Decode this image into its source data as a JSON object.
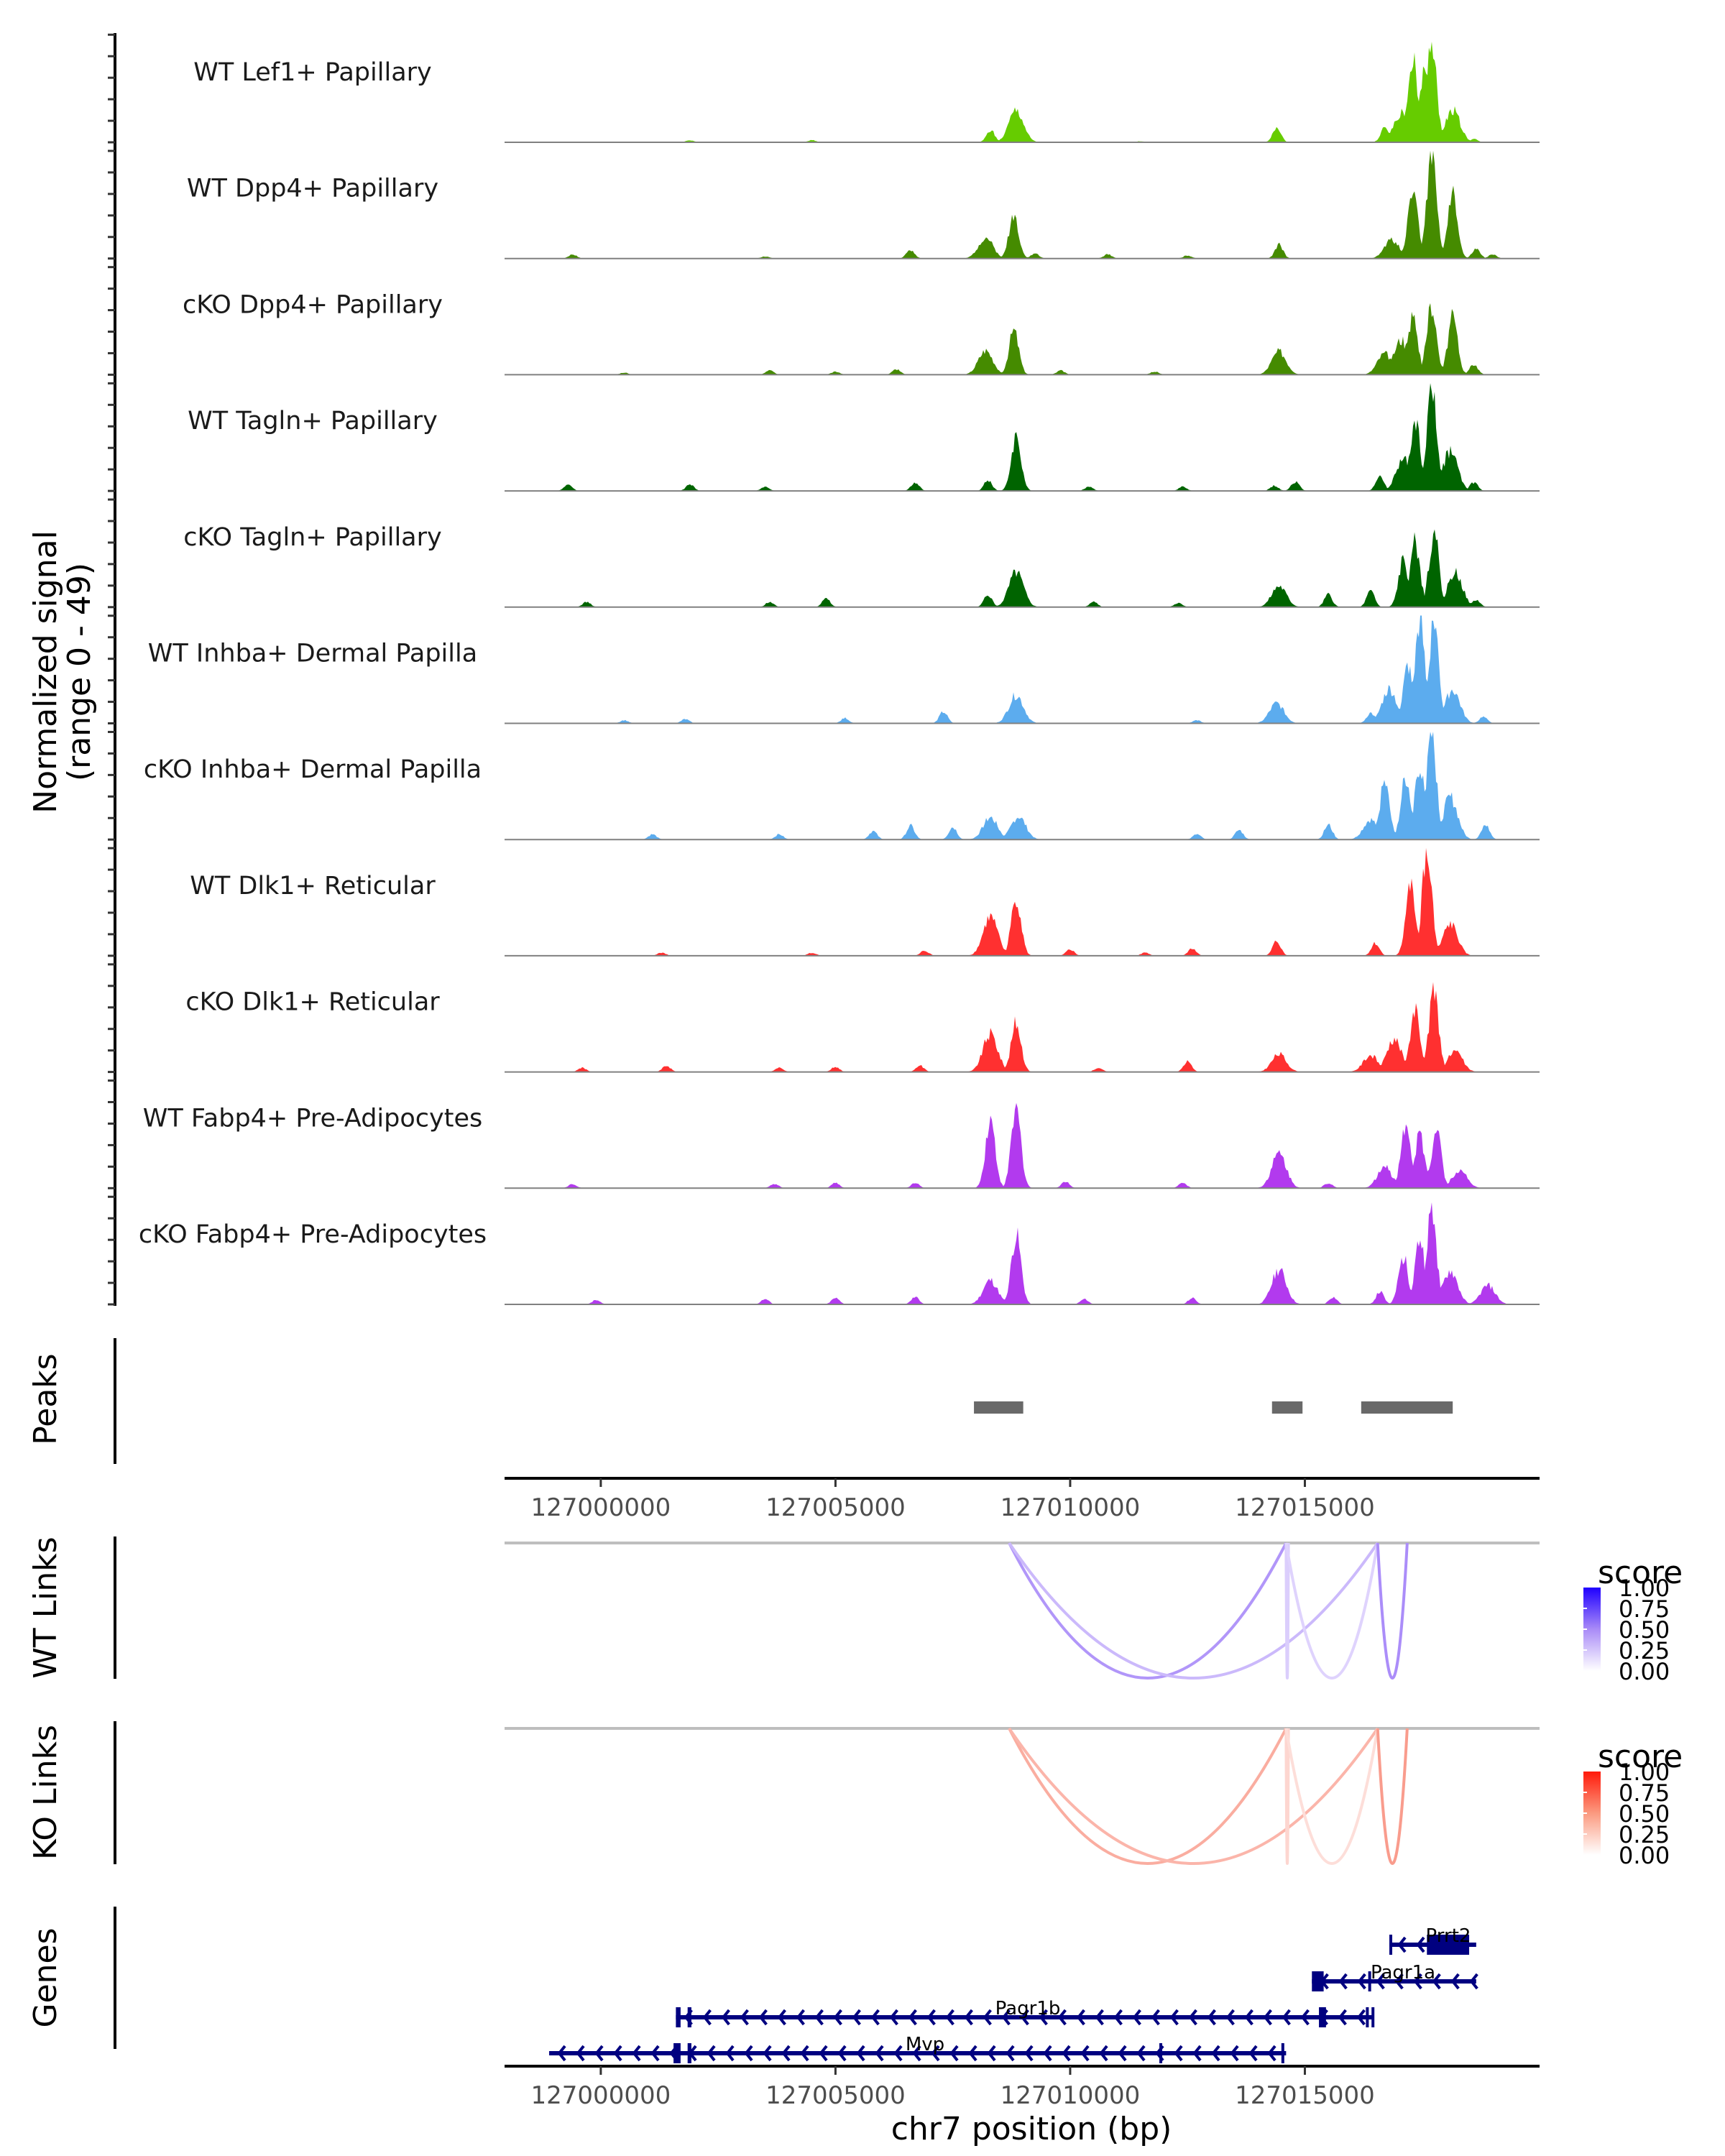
{
  "chart_data": {
    "type": "area",
    "title": "",
    "xlabel": "chr7 position (bp)",
    "ylabel_line1": "Normalized signal",
    "ylabel_line2": "(range 0 - 49)",
    "y_range": [
      0,
      49
    ],
    "xlim": [
      126997950,
      127020000
    ],
    "x_ticks": [
      127000000,
      127005000,
      127010000,
      127015000
    ],
    "x_tick_labels": [
      "127000000",
      "127005000",
      "127010000",
      "127015000"
    ],
    "coverage_tracks": [
      {
        "name": "WT Lef1+ Papillary",
        "color": "#66CC00",
        "peaks": [
          [
            127008300,
            0.12
          ],
          [
            127008850,
            0.3
          ],
          [
            127014400,
            0.15
          ],
          [
            127016700,
            0.14
          ],
          [
            127017050,
            0.28
          ],
          [
            127017300,
            0.77
          ],
          [
            127017550,
            0.72
          ],
          [
            127017700,
            0.99
          ],
          [
            127018150,
            0.31
          ],
          [
            127001900,
            0.02
          ],
          [
            127004500,
            0.02
          ],
          [
            127011500,
            0.01
          ],
          [
            127018600,
            0.03
          ]
        ]
      },
      {
        "name": "WT Dpp4+ Papillary",
        "color": "#458B00",
        "peaks": [
          [
            127008200,
            0.2
          ],
          [
            127008800,
            0.42
          ],
          [
            127009250,
            0.05
          ],
          [
            127006600,
            0.08
          ],
          [
            127014450,
            0.13
          ],
          [
            127016850,
            0.18
          ],
          [
            127017300,
            0.7
          ],
          [
            127017700,
            0.99
          ],
          [
            127018150,
            0.6
          ],
          [
            127018650,
            0.09
          ],
          [
            127019000,
            0.04
          ],
          [
            126999400,
            0.04
          ],
          [
            127003500,
            0.02
          ],
          [
            127010800,
            0.04
          ],
          [
            127012500,
            0.03
          ]
        ]
      },
      {
        "name": "cKO Dpp4+ Papillary",
        "color": "#458B00",
        "peaks": [
          [
            127008200,
            0.23
          ],
          [
            127008800,
            0.42
          ],
          [
            127014450,
            0.22
          ],
          [
            127016700,
            0.2
          ],
          [
            127017050,
            0.33
          ],
          [
            127017300,
            0.56
          ],
          [
            127017700,
            0.66
          ],
          [
            127018150,
            0.54
          ],
          [
            127018600,
            0.1
          ],
          [
            127003600,
            0.04
          ],
          [
            127006300,
            0.05
          ],
          [
            127009800,
            0.04
          ],
          [
            127011800,
            0.03
          ],
          [
            127005000,
            0.03
          ],
          [
            127000500,
            0.02
          ]
        ]
      },
      {
        "name": "WT Tagln+ Papillary",
        "color": "#006400",
        "peaks": [
          [
            127008850,
            0.52
          ],
          [
            127008250,
            0.1
          ],
          [
            127014350,
            0.05
          ],
          [
            127014800,
            0.09
          ],
          [
            127016600,
            0.15
          ],
          [
            127017100,
            0.3
          ],
          [
            127017350,
            0.67
          ],
          [
            127017700,
            0.98
          ],
          [
            127018100,
            0.38
          ],
          [
            127018600,
            0.08
          ],
          [
            126999300,
            0.06
          ],
          [
            127001900,
            0.06
          ],
          [
            127003500,
            0.04
          ],
          [
            127006700,
            0.08
          ],
          [
            127010400,
            0.04
          ],
          [
            127012400,
            0.04
          ]
        ]
      },
      {
        "name": "cKO Tagln+ Papillary",
        "color": "#006400",
        "peaks": [
          [
            127008850,
            0.33
          ],
          [
            127008250,
            0.12
          ],
          [
            127014450,
            0.2
          ],
          [
            127015500,
            0.12
          ],
          [
            127016400,
            0.15
          ],
          [
            127017100,
            0.45
          ],
          [
            127017350,
            0.62
          ],
          [
            127017750,
            0.72
          ],
          [
            127018200,
            0.33
          ],
          [
            127018650,
            0.07
          ],
          [
            126999700,
            0.05
          ],
          [
            127003600,
            0.05
          ],
          [
            127004800,
            0.08
          ],
          [
            127010500,
            0.05
          ],
          [
            127012300,
            0.04
          ]
        ]
      },
      {
        "name": "WT Inhba+ Dermal Papilla",
        "color": "#5CACEE",
        "peaks": [
          [
            127007300,
            0.11
          ],
          [
            127008850,
            0.27
          ],
          [
            127014400,
            0.19
          ],
          [
            127016400,
            0.1
          ],
          [
            127016800,
            0.33
          ],
          [
            127017200,
            0.55
          ],
          [
            127017450,
            0.98
          ],
          [
            127017750,
            0.99
          ],
          [
            127018150,
            0.32
          ],
          [
            127018800,
            0.06
          ],
          [
            127000500,
            0.03
          ],
          [
            127001800,
            0.04
          ],
          [
            127005200,
            0.05
          ],
          [
            127012700,
            0.03
          ]
        ]
      },
      {
        "name": "cKO Inhba+ Dermal Papilla",
        "color": "#5CACEE",
        "peaks": [
          [
            127008300,
            0.21
          ],
          [
            127008900,
            0.22
          ],
          [
            127016400,
            0.19
          ],
          [
            127016700,
            0.54
          ],
          [
            127017150,
            0.6
          ],
          [
            127017450,
            0.71
          ],
          [
            127017700,
            0.99
          ],
          [
            127018100,
            0.4
          ],
          [
            127018850,
            0.14
          ],
          [
            127001100,
            0.05
          ],
          [
            127003800,
            0.05
          ],
          [
            127005800,
            0.08
          ],
          [
            127006600,
            0.13
          ],
          [
            127007500,
            0.12
          ],
          [
            127012700,
            0.05
          ],
          [
            127013600,
            0.09
          ],
          [
            127015500,
            0.14
          ]
        ]
      },
      {
        "name": "WT Dlk1+ Reticular",
        "color": "#FF3030",
        "peaks": [
          [
            127008300,
            0.37
          ],
          [
            127008850,
            0.55
          ],
          [
            127010000,
            0.06
          ],
          [
            127014400,
            0.14
          ],
          [
            127016500,
            0.12
          ],
          [
            127017250,
            0.66
          ],
          [
            127017600,
            0.99
          ],
          [
            127018100,
            0.3
          ],
          [
            127001300,
            0.03
          ],
          [
            127004500,
            0.03
          ],
          [
            127006900,
            0.05
          ],
          [
            127011600,
            0.03
          ],
          [
            127012600,
            0.07
          ]
        ]
      },
      {
        "name": "cKO Dlk1+ Reticular",
        "color": "#FF3030",
        "peaks": [
          [
            127008300,
            0.36
          ],
          [
            127008850,
            0.47
          ],
          [
            127014450,
            0.17
          ],
          [
            127016400,
            0.16
          ],
          [
            127016900,
            0.32
          ],
          [
            127017350,
            0.62
          ],
          [
            127017750,
            0.76
          ],
          [
            127018200,
            0.2
          ],
          [
            126999600,
            0.04
          ],
          [
            127001400,
            0.06
          ],
          [
            127003800,
            0.04
          ],
          [
            127005000,
            0.05
          ],
          [
            127006800,
            0.06
          ],
          [
            127010600,
            0.04
          ],
          [
            127012500,
            0.1
          ]
        ]
      },
      {
        "name": "WT Fabp4+ Pre-Adipocytes",
        "color": "#B23AEE",
        "peaks": [
          [
            127008300,
            0.66
          ],
          [
            127008850,
            0.74
          ],
          [
            127014450,
            0.33
          ],
          [
            127015500,
            0.05
          ],
          [
            127016700,
            0.2
          ],
          [
            127017150,
            0.57
          ],
          [
            127017450,
            0.51
          ],
          [
            127017800,
            0.55
          ],
          [
            127018300,
            0.18
          ],
          [
            126999400,
            0.04
          ],
          [
            127003700,
            0.04
          ],
          [
            127005000,
            0.05
          ],
          [
            127006700,
            0.05
          ],
          [
            127009900,
            0.06
          ],
          [
            127012400,
            0.05
          ]
        ]
      },
      {
        "name": "cKO Fabp4+ Pre-Adipocytes",
        "color": "#B23AEE",
        "peaks": [
          [
            127008300,
            0.23
          ],
          [
            127008850,
            0.66
          ],
          [
            127014450,
            0.33
          ],
          [
            127015600,
            0.07
          ],
          [
            127016600,
            0.12
          ],
          [
            127017100,
            0.45
          ],
          [
            127017450,
            0.63
          ],
          [
            127017700,
            0.9
          ],
          [
            127018100,
            0.32
          ],
          [
            127018900,
            0.18
          ],
          [
            126999900,
            0.04
          ],
          [
            127003500,
            0.05
          ],
          [
            127005000,
            0.06
          ],
          [
            127006700,
            0.07
          ],
          [
            127010300,
            0.05
          ],
          [
            127012600,
            0.06
          ]
        ]
      }
    ],
    "peaks_track": {
      "label": "Peaks",
      "color": "#696969",
      "regions": [
        [
          127007950,
          127009000
        ],
        [
          127014300,
          127014950
        ],
        [
          127016200,
          127018150
        ]
      ]
    },
    "links_tracks": [
      {
        "label": "WT Links",
        "color_high": "#0000FF",
        "color_low": "#FFFFFF",
        "links": [
          {
            "start": 127008700,
            "end": 127014600,
            "score": 0.6
          },
          {
            "start": 127008700,
            "end": 127016550,
            "score": 0.4
          },
          {
            "start": 127014600,
            "end": 127014650,
            "score": 0.28
          },
          {
            "start": 127014600,
            "end": 127016550,
            "score": 0.25
          },
          {
            "start": 127016550,
            "end": 127017180,
            "score": 0.65
          }
        ]
      },
      {
        "label": "KO Links",
        "color_high": "#FF0000",
        "color_low": "#FFFFFF",
        "links": [
          {
            "start": 127008700,
            "end": 127014600,
            "score": 0.5
          },
          {
            "start": 127008700,
            "end": 127016550,
            "score": 0.45
          },
          {
            "start": 127014600,
            "end": 127014650,
            "score": 0.25
          },
          {
            "start": 127014600,
            "end": 127016550,
            "score": 0.2
          },
          {
            "start": 127016550,
            "end": 127017180,
            "score": 0.6
          }
        ]
      }
    ],
    "legend": {
      "title": "score",
      "ticks": [
        "1.00",
        "0.75",
        "0.50",
        "0.25",
        "0.00"
      ],
      "placement": "right"
    },
    "genes_track": {
      "label": "Genes",
      "color": "#000080",
      "genes": [
        {
          "name": "Prrt2",
          "row": 0,
          "start": 127016800,
          "end": 127018650,
          "strand": "-",
          "exons": [
            [
              127016800,
              127016850
            ],
            [
              127017600,
              127018500
            ]
          ]
        },
        {
          "name": "Pagr1a",
          "row": 1,
          "start": 127015150,
          "end": 127018650,
          "strand": "-",
          "exons": [
            [
              127015150,
              127015400
            ],
            [
              127016350,
              127016380
            ]
          ]
        },
        {
          "name": "Pagr1b",
          "row": 2,
          "start": 127001600,
          "end": 127016450,
          "strand": "-",
          "exons": [
            [
              127001600,
              127001700
            ],
            [
              127001850,
              127001930
            ],
            [
              127015300,
              127015450
            ],
            [
              127016300,
              127016330
            ],
            [
              127016420,
              127016450
            ]
          ]
        },
        {
          "name": "Mvp",
          "row": 3,
          "start": 126998900,
          "end": 127014600,
          "strand": "-",
          "exons": [
            [
              127001550,
              127001700
            ],
            [
              127001850,
              127001930
            ],
            [
              127011900,
              127011930
            ],
            [
              127014500,
              127014560
            ]
          ]
        }
      ]
    }
  }
}
